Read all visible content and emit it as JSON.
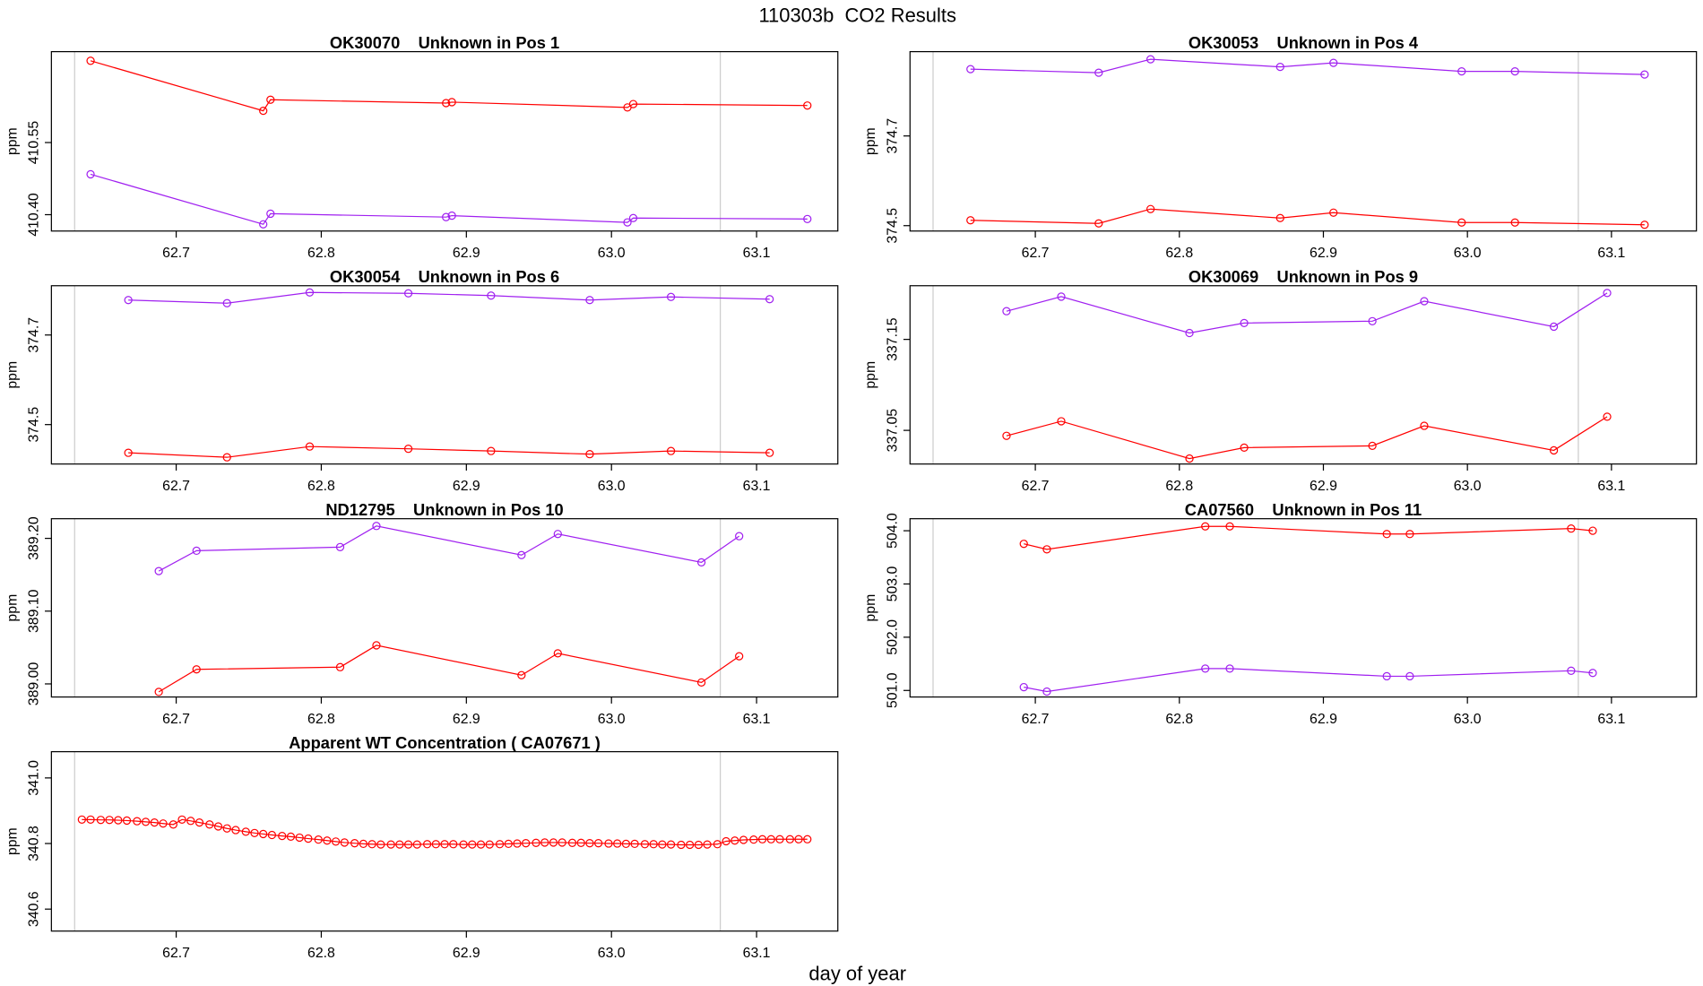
{
  "title": "110303b  CO2 Results",
  "xlabel": "day of year",
  "chart_data": [
    {
      "type": "line",
      "title": "OK30070    Unknown in Pos 1",
      "ylabel": "ppm",
      "x": [
        62.641,
        62.76,
        62.765,
        62.886,
        62.89,
        63.011,
        63.015,
        63.135
      ],
      "series": [
        {
          "color": "#ff0000",
          "values": [
            410.72,
            410.616,
            410.639,
            410.632,
            410.634,
            410.623,
            410.63,
            410.627
          ]
        },
        {
          "color": "#a020f0",
          "values": [
            410.484,
            410.38,
            410.402,
            410.395,
            410.398,
            410.384,
            410.393,
            410.391
          ]
        }
      ],
      "xlim": [
        62.614,
        63.156
      ],
      "ylim": [
        410.366,
        410.739
      ],
      "xticks": [
        62.7,
        62.8,
        62.9,
        {
          "value": 63,
          "label": "63.0"
        },
        63.1
      ],
      "yticks": [
        {
          "value": 410.4,
          "label": "410.40"
        },
        410.55
      ],
      "vlines": [
        62.63,
        63.075
      ],
      "vline_color": "#cccccc"
    },
    {
      "type": "line",
      "title": "OK30053    Unknown in Pos 4",
      "ylabel": "ppm",
      "x": [
        62.655,
        62.744,
        62.78,
        62.87,
        62.907,
        62.996,
        63.033,
        63.123
      ],
      "series": [
        {
          "color": "#a020f0",
          "values": [
            374.849,
            374.841,
            374.871,
            374.854,
            374.863,
            374.844,
            374.844,
            374.837
          ]
        },
        {
          "color": "#ff0000",
          "values": [
            374.512,
            374.505,
            374.537,
            374.517,
            374.529,
            374.507,
            374.507,
            374.502
          ]
        }
      ],
      "xlim": [
        62.613,
        63.159
      ],
      "ylim": [
        374.488,
        374.888
      ],
      "xticks": [
        62.7,
        62.8,
        62.9,
        {
          "value": 63,
          "label": "63.0"
        },
        63.1
      ],
      "yticks": [
        374.5,
        374.7
      ],
      "vlines": [
        62.629,
        63.077
      ],
      "vline_color": "#cccccc"
    },
    {
      "type": "line",
      "title": "OK30054    Unknown in Pos 6",
      "ylabel": "ppm",
      "x": [
        62.667,
        62.735,
        62.792,
        62.86,
        62.917,
        62.985,
        63.041,
        63.109
      ],
      "series": [
        {
          "color": "#a020f0",
          "values": [
            374.778,
            374.771,
            374.795,
            374.793,
            374.788,
            374.778,
            374.785,
            374.78
          ]
        },
        {
          "color": "#ff0000",
          "values": [
            374.437,
            374.427,
            374.451,
            374.446,
            374.441,
            374.434,
            374.441,
            374.437
          ]
        }
      ],
      "xlim": [
        62.614,
        63.156
      ],
      "ylim": [
        374.412,
        374.81
      ],
      "xticks": [
        62.7,
        62.8,
        62.9,
        {
          "value": 63,
          "label": "63.0"
        },
        63.1
      ],
      "yticks": [
        374.5,
        374.7
      ],
      "vlines": [
        62.63,
        63.075
      ],
      "vline_color": "#cccccc"
    },
    {
      "type": "line",
      "title": "OK30069    Unknown in Pos 9",
      "ylabel": "ppm",
      "x": [
        62.68,
        62.718,
        62.807,
        62.845,
        62.934,
        62.97,
        63.06,
        63.097
      ],
      "series": [
        {
          "color": "#a020f0",
          "values": [
            337.181,
            337.197,
            337.157,
            337.168,
            337.17,
            337.192,
            337.164,
            337.201
          ]
        },
        {
          "color": "#ff0000",
          "values": [
            337.044,
            337.06,
            337.019,
            337.031,
            337.033,
            337.055,
            337.028,
            337.065
          ]
        }
      ],
      "xlim": [
        62.613,
        63.159
      ],
      "ylim": [
        337.013,
        337.209
      ],
      "xticks": [
        62.7,
        62.8,
        62.9,
        {
          "value": 63,
          "label": "63.0"
        },
        63.1
      ],
      "yticks": [
        337.05,
        337.15
      ],
      "vlines": [
        62.629,
        63.077
      ],
      "vline_color": "#cccccc"
    },
    {
      "type": "line",
      "title": "ND12795    Unknown in Pos 10",
      "ylabel": "ppm",
      "x": [
        62.688,
        62.714,
        62.813,
        62.838,
        62.938,
        62.963,
        63.062,
        63.088
      ],
      "series": [
        {
          "color": "#a020f0",
          "values": [
            389.155,
            389.183,
            389.188,
            389.217,
            389.177,
            389.206,
            389.167,
            389.203
          ]
        },
        {
          "color": "#ff0000",
          "values": [
            388.989,
            389.02,
            389.023,
            389.053,
            389.012,
            389.042,
            389.002,
            389.038
          ]
        }
      ],
      "xlim": [
        62.614,
        63.156
      ],
      "ylim": [
        388.982,
        389.227
      ],
      "xticks": [
        62.7,
        62.8,
        62.9,
        {
          "value": 63,
          "label": "63.0"
        },
        63.1
      ],
      "yticks": [
        {
          "value": 389,
          "label": "389.00"
        },
        {
          "value": 389.1,
          "label": "389.10"
        },
        {
          "value": 389.2,
          "label": "389.20"
        }
      ],
      "vlines": [
        62.63,
        63.075
      ],
      "vline_color": "#cccccc"
    },
    {
      "type": "line",
      "title": "CA07560    Unknown in Pos 11",
      "ylabel": "ppm",
      "x": [
        62.692,
        62.708,
        62.818,
        62.835,
        62.944,
        62.96,
        63.072,
        63.087
      ],
      "series": [
        {
          "color": "#ff0000",
          "values": [
            503.754,
            503.651,
            504.082,
            504.082,
            503.938,
            503.938,
            504.041,
            504.0
          ]
        },
        {
          "color": "#a020f0",
          "values": [
            501.062,
            500.979,
            501.411,
            501.411,
            501.267,
            501.267,
            501.37,
            501.329
          ]
        }
      ],
      "xlim": [
        62.613,
        63.159
      ],
      "ylim": [
        500.877,
        504.226
      ],
      "xticks": [
        62.7,
        62.8,
        62.9,
        {
          "value": 63,
          "label": "63.0"
        },
        63.1
      ],
      "yticks": [
        {
          "value": 501,
          "label": "501.0"
        },
        {
          "value": 502,
          "label": "502.0"
        },
        {
          "value": 503,
          "label": "503.0"
        },
        {
          "value": 504,
          "label": "504.0"
        }
      ],
      "vlines": [
        62.629,
        63.077
      ],
      "vline_color": "#cccccc"
    },
    {
      "type": "line",
      "title": "Apparent WT Concentration ( CA07671 )",
      "ylabel": "ppm",
      "x": [
        62.635,
        62.641,
        62.648,
        62.654,
        62.66,
        62.666,
        62.673,
        62.679,
        62.685,
        62.691,
        62.698,
        62.704,
        62.71,
        62.716,
        62.723,
        62.729,
        62.735,
        62.741,
        62.748,
        62.754,
        62.76,
        62.766,
        62.773,
        62.779,
        62.785,
        62.791,
        62.798,
        62.804,
        62.81,
        62.816,
        62.823,
        62.829,
        62.835,
        62.841,
        62.848,
        62.854,
        62.86,
        62.866,
        62.873,
        62.879,
        62.885,
        62.891,
        62.898,
        62.904,
        62.91,
        62.916,
        62.923,
        62.929,
        62.935,
        62.941,
        62.948,
        62.954,
        62.96,
        62.966,
        62.973,
        62.979,
        62.985,
        62.991,
        62.998,
        63.004,
        63.01,
        63.016,
        63.023,
        63.029,
        63.035,
        63.041,
        63.048,
        63.054,
        63.06,
        63.066,
        63.073,
        63.079,
        63.085,
        63.091,
        63.098,
        63.104,
        63.11,
        63.116,
        63.123,
        63.129,
        63.135
      ],
      "series": [
        {
          "color": "#ff0000",
          "values": [
            340.873,
            340.873,
            340.872,
            340.872,
            340.871,
            340.87,
            340.868,
            340.866,
            340.864,
            340.861,
            340.858,
            340.873,
            340.869,
            340.864,
            340.858,
            340.852,
            340.846,
            340.841,
            340.836,
            340.832,
            340.829,
            340.826,
            340.823,
            340.821,
            340.818,
            340.815,
            340.812,
            340.809,
            340.806,
            340.803,
            340.801,
            340.799,
            340.798,
            340.797,
            340.797,
            340.797,
            340.797,
            340.797,
            340.798,
            340.798,
            340.798,
            340.798,
            340.797,
            340.797,
            340.797,
            340.797,
            340.798,
            340.799,
            340.8,
            340.801,
            340.802,
            340.803,
            340.803,
            340.803,
            340.802,
            340.802,
            340.801,
            340.801,
            340.8,
            340.8,
            340.799,
            340.799,
            340.798,
            340.798,
            340.797,
            340.797,
            340.796,
            340.796,
            340.796,
            340.797,
            340.798,
            340.807,
            340.809,
            340.811,
            340.812,
            340.813,
            340.813,
            340.813,
            340.813,
            340.813,
            340.813
          ]
        }
      ],
      "xlim": [
        62.614,
        63.156
      ],
      "ylim": [
        340.533,
        341.08
      ],
      "xticks": [
        62.7,
        62.8,
        62.9,
        {
          "value": 63,
          "label": "63.0"
        },
        63.1
      ],
      "yticks": [
        340.6,
        340.8,
        {
          "value": 341,
          "label": "341.0"
        }
      ],
      "vlines": [
        62.63,
        63.075
      ],
      "vline_color": "#cccccc"
    }
  ]
}
